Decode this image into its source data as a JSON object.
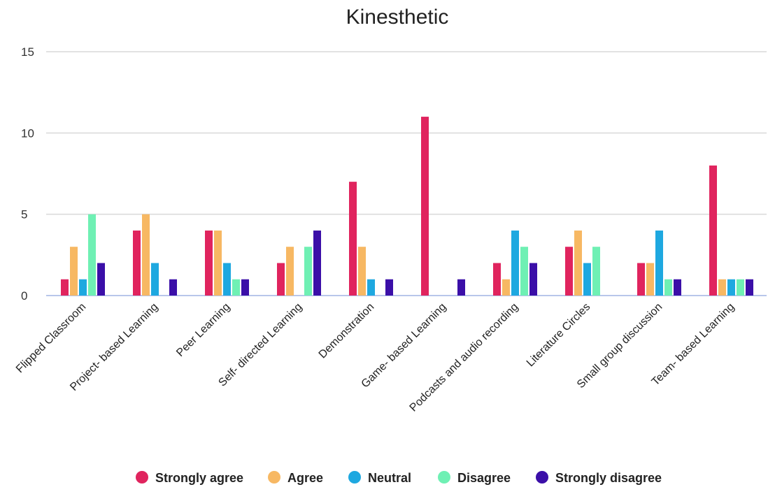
{
  "chart_data": {
    "type": "bar",
    "title": "Kinesthetic",
    "xlabel": "",
    "ylabel": "",
    "ylim": [
      0,
      15
    ],
    "yticks": [
      "0",
      "5",
      "10",
      "15"
    ],
    "grid": true,
    "legend_position": "bottom",
    "categories": [
      "Flipped Classroom",
      "Project- based Learning",
      "Peer Learning",
      "Self- directed Learning",
      "Demonstration",
      "Game- based Learning",
      "Podcasts and audio recording",
      "Literature Circles",
      "Small group discussion",
      "Team- based Learning"
    ],
    "series": [
      {
        "name": "Strongly agree",
        "color": "#e0245e",
        "values": [
          1,
          4,
          4,
          2,
          7,
          11,
          2,
          3,
          2,
          8
        ]
      },
      {
        "name": "Agree",
        "color": "#f7b863",
        "values": [
          3,
          5,
          4,
          3,
          3,
          0,
          1,
          4,
          2,
          1
        ]
      },
      {
        "name": "Neutral",
        "color": "#1ea8e0",
        "values": [
          1,
          2,
          2,
          0,
          1,
          0,
          4,
          2,
          4,
          1
        ]
      },
      {
        "name": "Disagree",
        "color": "#6ff0b4",
        "values": [
          5,
          0,
          1,
          3,
          0,
          0,
          3,
          3,
          1,
          1
        ]
      },
      {
        "name": "Strongly disagree",
        "color": "#3b0fa8",
        "values": [
          2,
          1,
          1,
          4,
          1,
          1,
          2,
          0,
          1,
          1
        ]
      }
    ]
  }
}
